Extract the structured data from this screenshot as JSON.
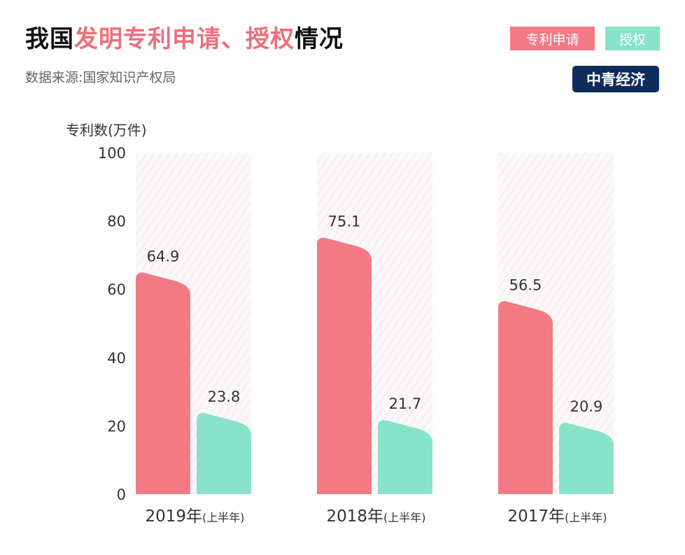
{
  "title": {
    "part1": "我国",
    "highlight": "发明专利申请、授权",
    "part2": "情况"
  },
  "subtitle": "数据来源:国家知识产权局",
  "legend": {
    "apply": "专利申请",
    "grant": "授权"
  },
  "brand": "中青经济",
  "colors": {
    "apply": "#f27a84",
    "grant": "#88e3c8",
    "title_highlight": "#ef6e7b",
    "brand_bg": "#0f2c5e"
  },
  "chart_data": {
    "type": "bar",
    "ylabel": "专利数(万件)",
    "ylim": [
      0,
      100
    ],
    "yticks": [
      0,
      20,
      40,
      60,
      80,
      100
    ],
    "categories": [
      {
        "year": "2019年",
        "note": "(上半年)"
      },
      {
        "year": "2018年",
        "note": "(上半年)"
      },
      {
        "year": "2017年",
        "note": "(上半年)"
      }
    ],
    "series": [
      {
        "name": "专利申请",
        "values": [
          64.9,
          75.1,
          56.5
        ],
        "labels": [
          "64.9",
          "75.1",
          "56.5"
        ]
      },
      {
        "name": "授权",
        "values": [
          23.8,
          21.7,
          20.9
        ],
        "labels": [
          "23.8",
          "21.7",
          "20.9"
        ]
      }
    ],
    "grid": false,
    "legend_position": "top-right"
  }
}
